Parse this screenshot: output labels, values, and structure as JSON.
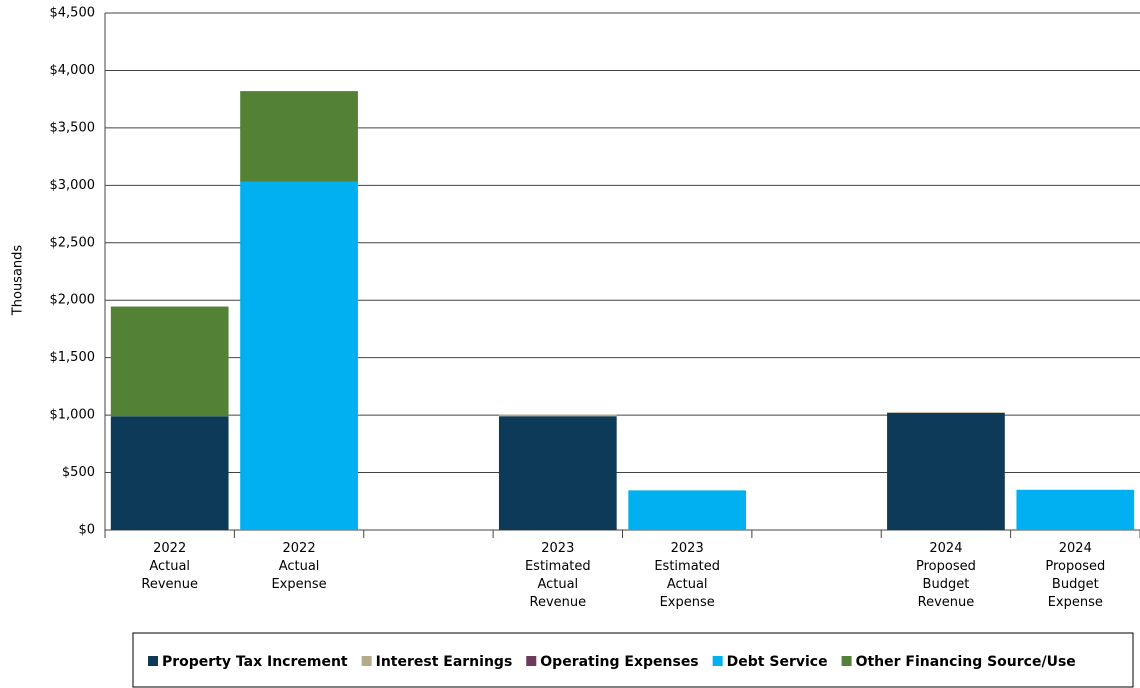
{
  "chart_data": {
    "type": "stacked_bar",
    "y_axis_label": "Thousands",
    "categories": [
      "2022\nActual\nRevenue",
      "2022\nActual\nExpense",
      null,
      "2023\nEstimated\nActual\nRevenue",
      "2023\nEstimated\nActual\nExpense",
      null,
      "2024\nProposed\nBudget\nRevenue",
      "2024\nProposed\nBudget\nExpense"
    ],
    "series": [
      {
        "name": "Property Tax Increment",
        "color": "#0e3a5a",
        "values": [
          990,
          0,
          null,
          990,
          0,
          null,
          1020,
          0
        ]
      },
      {
        "name": "Interest Earnings",
        "color": "#b5aa88",
        "values": [
          0,
          0,
          null,
          15,
          0,
          null,
          5,
          0
        ]
      },
      {
        "name": "Operating Expenses",
        "color": "#6b3a5c",
        "values": [
          0,
          0,
          null,
          0,
          0,
          null,
          0,
          0
        ]
      },
      {
        "name": "Debt Service",
        "color": "#00b0f0",
        "values": [
          0,
          3030,
          null,
          0,
          345,
          null,
          0,
          350
        ]
      },
      {
        "name": "Other Financing Source/Use",
        "color": "#538135",
        "values": [
          955,
          790,
          null,
          0,
          0,
          null,
          0,
          0
        ]
      }
    ],
    "ylim": [
      0,
      4500
    ],
    "yticks": [
      {
        "value": 0,
        "label": "$0"
      },
      {
        "value": 500,
        "label": "$500"
      },
      {
        "value": 1000,
        "label": "$1,000"
      },
      {
        "value": 1500,
        "label": "$1,500"
      },
      {
        "value": 2000,
        "label": "$2,000"
      },
      {
        "value": 2500,
        "label": "$2,500"
      },
      {
        "value": 3000,
        "label": "$3,000"
      },
      {
        "value": 3500,
        "label": "$3,500"
      },
      {
        "value": 4000,
        "label": "$4,000"
      },
      {
        "value": 4500,
        "label": "$4,500"
      }
    ],
    "grid": true,
    "legend": "bottom"
  }
}
